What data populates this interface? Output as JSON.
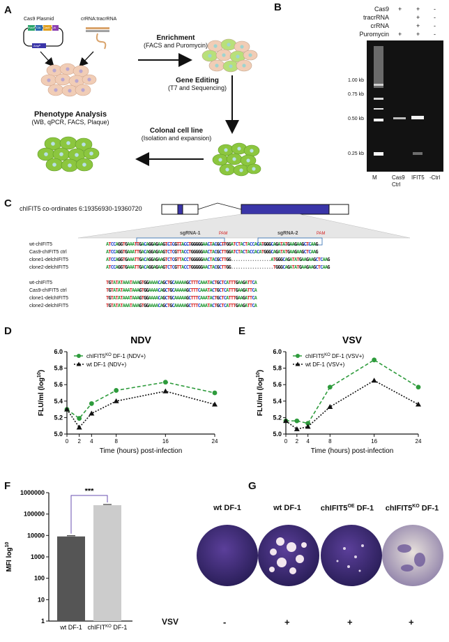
{
  "panels": {
    "A": "A",
    "B": "B",
    "C": "C",
    "D": "D",
    "E": "E",
    "F": "F",
    "G": "G"
  },
  "panelA": {
    "cas9_plasmid": "Cas9 Plasmid",
    "crrna_tracrrna": "crRNA:tracrRNA",
    "plasmid_parts": [
      "Puroᴿ",
      "T2A",
      "Cas9",
      "U6",
      "Ampᴿ"
    ],
    "enrichment_title": "Enrichment",
    "enrichment_sub": "(FACS and Puromycin)",
    "gene_editing_title": "Gene Editing",
    "gene_editing_sub": "(T7 and Sequencing)",
    "colonal_title": "Colonal cell line",
    "colonal_sub": "(Isolation and expansion)",
    "phenotype_title": "Phenotype Analysis",
    "phenotype_sub": "(WB, qPCR, FACS, Plaque)"
  },
  "panelB": {
    "rows": [
      {
        "label": "Cas9",
        "marks": [
          "+",
          "+",
          "-"
        ]
      },
      {
        "label": "tracrRNA",
        "marks": [
          "",
          "+",
          "-"
        ]
      },
      {
        "label": "crRNA",
        "marks": [
          "",
          "+",
          "-"
        ]
      },
      {
        "label": "Puromycin",
        "marks": [
          "+",
          "+",
          "-"
        ]
      }
    ],
    "ladder": [
      "1.00 kb",
      "0.75 kb",
      "0.50 kb",
      "0.25 kb"
    ],
    "lanes": [
      "M",
      "Cas9\nCtrl",
      "IFIT5",
      "-Ctrl"
    ]
  },
  "panelC": {
    "coords": "chIFIT5 co-ordinates 6:19356930-19360720",
    "sgrna1": "sgRNA-1",
    "sgrna2": "sgRNA-2",
    "pam": "PAM",
    "block1": [
      {
        "name": "wt-chIFIT5",
        "seq": "ATCCAGGTGAAATTGACAGGAGAAGTCTCGTTACCTGGGGGAACTACGCTTGGATCTACTACCACATGGGCAGATATGAAGAAGCTCAAG"
      },
      {
        "name": "Cas9-chIFIT5 ctrl",
        "seq": "ATCCAGGTGAAATTGACAGGAGAAGTCTCGTTACCTGGGGGAACTACGCTTGGATCTACTACCACATGGGCAGATATGAAGAAGCTCAAG"
      },
      {
        "name": "clone1-delchIFIT5",
        "seq": "ATCCAGGTGAAATTGACAGGAGAAGTCTCGTTACCTGGGGGAACTACGCTTGG.................ATGGGCAGATATGAAGAAGCTCAAG"
      },
      {
        "name": "clone2-delchIFIT5",
        "seq": "ATCCAGGTGAAATTGACAGGAGAAGTCTCGTTACCTGGGGGAACTACGCTTGG..................TGGGCAGATATGAAGAAGCTCAAG"
      }
    ],
    "block2": [
      {
        "name": "wt-chIFIT5",
        "seq": "TGTATATAAATAAAGTGGAAAACAGCTGCAAAAAGCTTTCAAATACTGCTCATTTGAAGATTCA"
      },
      {
        "name": "Cas9-chIFIT5 ctrl",
        "seq": "TGTATATAAATAAAGTGGAAAACAGCTGCAAAAAGCTTTCAAATACTGCTCATTTGAAGATTCA"
      },
      {
        "name": "clone1-delchIFIT5",
        "seq": "TGTATATAAATAAAGTGGAAAACAGCTGCAAAAAGCTTTCAAATACTGCTCATTTGAAGATTCA"
      },
      {
        "name": "clone2-delchIFIT5",
        "seq": "TGTATATAAATAAAGTGGAAAACAGCTGCAAAAAGCTTTCAAATACTGCTCATTTGAAGATTCA"
      }
    ]
  },
  "colors": {
    "green": "#2e9b3c",
    "black": "#111111",
    "blue_exon": "#3a35a8",
    "bar_dark": "#555555",
    "bar_light": "#cccccc",
    "A": "#2a9a3a",
    "C": "#1a3fcf",
    "G": "#111111",
    "T": "#d42020"
  },
  "chart_data": [
    {
      "type": "line",
      "title": "NDV",
      "xlabel": "Time (hours) post-infection",
      "ylabel": "FLU/ml (log",
      "ylabel_sup": "10",
      "ylim": [
        5.0,
        6.0
      ],
      "yticks": [
        "5.0",
        "5.2",
        "5.4",
        "5.6",
        "5.8",
        "6.0"
      ],
      "xticks": [
        "0",
        "2",
        "4",
        "8",
        "16",
        "24"
      ],
      "x": [
        0,
        2,
        4,
        8,
        16,
        24
      ],
      "series": [
        {
          "name": "chIFIT5",
          "name_sup": "KO",
          "name_rest": " DF-1 (NDV+)",
          "values": [
            5.3,
            5.19,
            5.37,
            5.53,
            5.63,
            5.5
          ]
        },
        {
          "name": "wt DF-1 (NDV+)",
          "values": [
            5.3,
            5.08,
            5.25,
            5.4,
            5.52,
            5.36
          ]
        }
      ]
    },
    {
      "type": "line",
      "title": "VSV",
      "xlabel": "Time (hours) post-infection",
      "ylabel": "FLU/ml (log",
      "ylabel_sup": "10",
      "ylim": [
        5.0,
        6.0
      ],
      "yticks": [
        "5.0",
        "5.2",
        "5.4",
        "5.6",
        "5.8",
        "6.0"
      ],
      "xticks": [
        "0",
        "2",
        "4",
        "8",
        "16",
        "24"
      ],
      "x": [
        0,
        2,
        4,
        8,
        16,
        24
      ],
      "series": [
        {
          "name": "chIFIT5",
          "name_sup": "KO",
          "name_rest": " DF-1 (VSV+)",
          "values": [
            5.16,
            5.16,
            5.13,
            5.57,
            5.9,
            5.57
          ]
        },
        {
          "name": "wt DF-1 (VSV+)",
          "values": [
            5.16,
            5.06,
            5.09,
            5.33,
            5.65,
            5.36
          ]
        }
      ]
    },
    {
      "type": "bar",
      "ylabel": "MFI log",
      "ylabel_sup": "10",
      "yticks": [
        "1",
        "10",
        "100",
        "1000",
        "10000",
        "100000",
        "1000000"
      ],
      "yscale": "log",
      "ylim": [
        1,
        1000000
      ],
      "categories": [
        "wt DF-1",
        "chIFIT"
      ],
      "category_sup": [
        "",
        "KO"
      ],
      "category_rest": [
        "",
        " DF-1"
      ],
      "values": [
        9000,
        260000
      ],
      "significance": "***"
    }
  ],
  "panelG": {
    "labels": [
      {
        "text": "wt DF-1",
        "sup": "",
        "rest": ""
      },
      {
        "text": "wt DF-1",
        "sup": "",
        "rest": ""
      },
      {
        "text": "chIFIT5",
        "sup": "OE",
        "rest": " DF-1"
      },
      {
        "text": "chIFIT5",
        "sup": "KO",
        "rest": " DF-1"
      }
    ],
    "vsv": "VSV",
    "treat": [
      "-",
      "+",
      "+",
      "+"
    ]
  }
}
